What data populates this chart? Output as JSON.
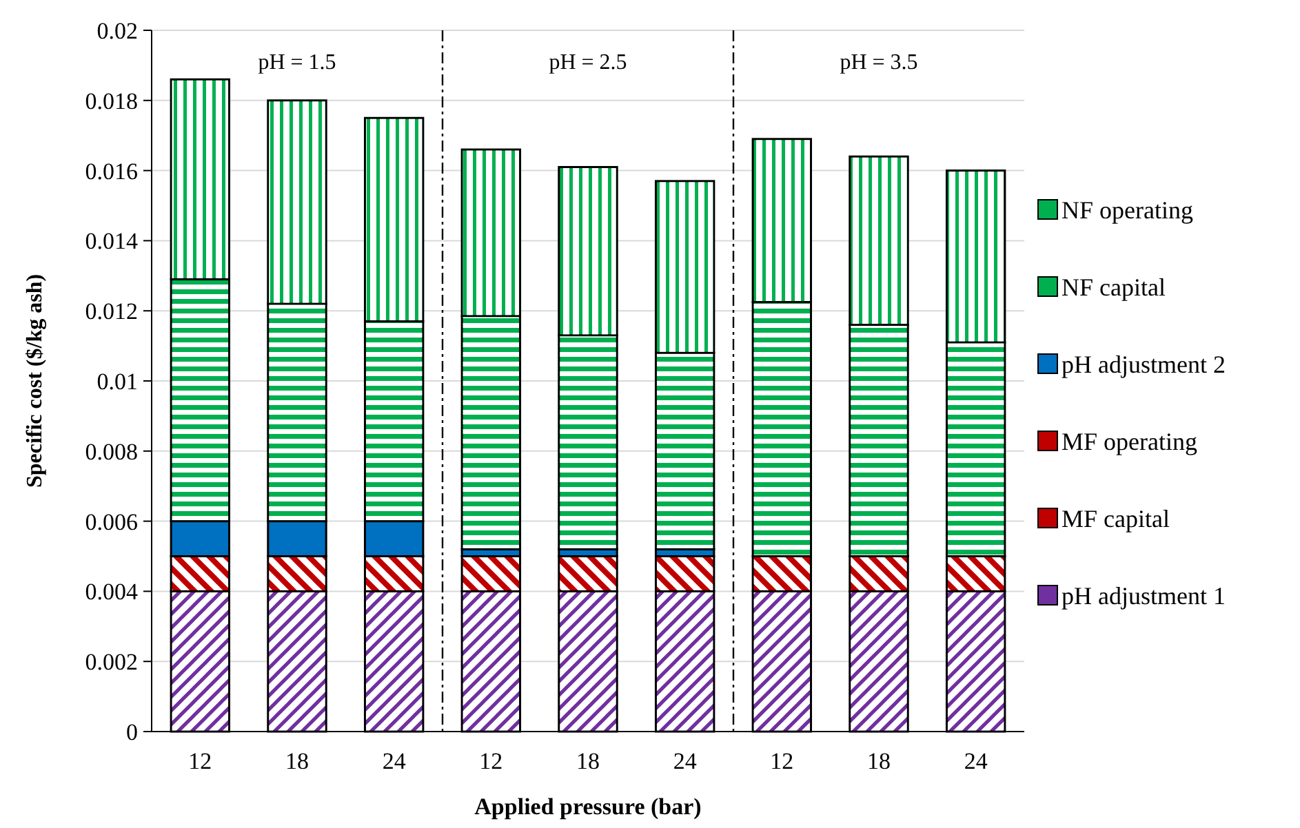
{
  "chart_data": {
    "type": "bar",
    "stacked": true,
    "xlabel": "Applied pressure (bar)",
    "ylabel": "Specific cost ($/kg ash)",
    "categories": [
      "12",
      "18",
      "24",
      "12",
      "18",
      "24",
      "12",
      "18",
      "24"
    ],
    "ylim": [
      0,
      0.02
    ],
    "yticks": [
      0,
      0.002,
      0.004,
      0.006,
      0.008,
      {
        "value": 0.01,
        "label": "0.01"
      },
      0.012,
      0.014,
      0.016,
      0.018,
      {
        "value": 0.02,
        "label": "0.02"
      }
    ],
    "grid": "y",
    "legend": "right",
    "annotations": [
      "pH = 1.5",
      "pH = 2.5",
      "pH = 3.5"
    ],
    "series": [
      {
        "name": "pH adjustment 1",
        "color": "#7030a0",
        "values": [
          0.004,
          0.004,
          0.004,
          0.004,
          0.004,
          0.004,
          0.004,
          0.004,
          0.004
        ]
      },
      {
        "name": "MF capital",
        "color": "#c00000",
        "values": [
          0.001,
          0.001,
          0.001,
          0.001,
          0.001,
          0.001,
          0.001,
          0.001,
          0.001
        ]
      },
      {
        "name": "MF operating",
        "color": "#c00000",
        "values": [
          0,
          0,
          0,
          0,
          0,
          0,
          0,
          0,
          0
        ]
      },
      {
        "name": "pH adjustment 2",
        "color": "#0070c0",
        "values": [
          0.001,
          0.001,
          0.001,
          0.0002,
          0.0002,
          0.0002,
          0,
          0,
          0
        ]
      },
      {
        "name": "NF capital",
        "color": "#00b050",
        "values": [
          0.0069,
          0.0062,
          0.0057,
          0.00665,
          0.0061,
          0.0056,
          0.00725,
          0.0066,
          0.0061
        ]
      },
      {
        "name": "NF operating",
        "color": "#00b050",
        "values": [
          0.0057,
          0.0058,
          0.0058,
          0.00475,
          0.0048,
          0.0049,
          0.00465,
          0.0048,
          0.0049
        ]
      }
    ]
  }
}
